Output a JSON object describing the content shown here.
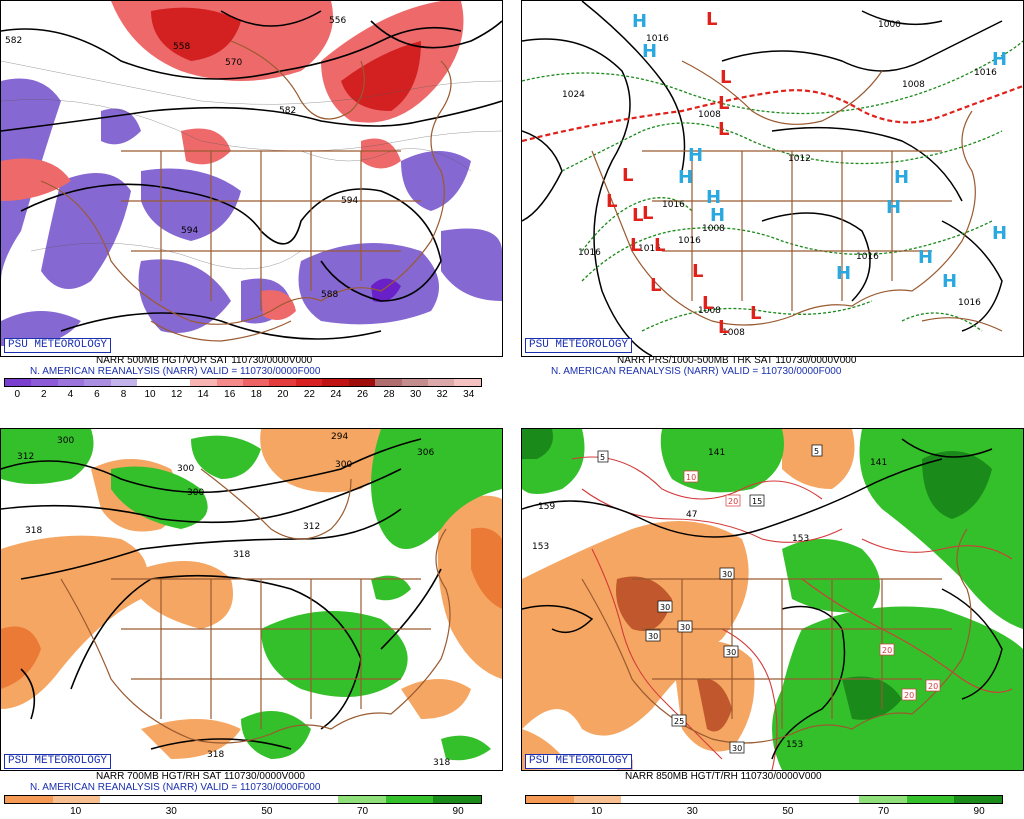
{
  "panels": {
    "tl": {
      "psu": "PSU METEOROLOGY",
      "caption1": "NARR 500MB HGT/VOR SAT 110730/0000V000",
      "caption2": "N. AMERICAN REANALYSIS (NARR) VALID = 110730/0000F000",
      "contour_labels": [
        "582",
        "558",
        "570",
        "556",
        "582",
        "594",
        "594",
        "588"
      ],
      "colorbar_ticks": [
        "0",
        "2",
        "4",
        "6",
        "8",
        "10",
        "12",
        "14",
        "16",
        "18",
        "20",
        "22",
        "24",
        "26",
        "28",
        "30",
        "32",
        "34"
      ],
      "colorbar_colors": [
        "#7b3fd0",
        "#8d5bd8",
        "#9b74dc",
        "#a98ee2",
        "#c2b4ea",
        "#ffffff",
        "#ffffff",
        "#f8b3b3",
        "#f48a8a",
        "#ee6363",
        "#e43c3c",
        "#d82222",
        "#c01414",
        "#a00d0d",
        "#b06d6d",
        "#c48d8d",
        "#dba9a9",
        "#f5c2c2"
      ]
    },
    "tr": {
      "psu": "PSU METEOROLOGY",
      "caption1": "NARR PRS/1000-500MB THK SAT 110730/0000V000",
      "caption2": "N. AMERICAN REANALYSIS (NARR) VALID = 110730/0000F000",
      "contour_labels": [
        "1000",
        "1016",
        "1024",
        "1008",
        "1016",
        "1008",
        "1012",
        "1016",
        "1016",
        "1016",
        "1016",
        "1016",
        "1008",
        "1008",
        "1016",
        "1008"
      ],
      "high_symbol": "H",
      "low_symbol": "L"
    },
    "bl": {
      "psu": "PSU METEOROLOGY",
      "caption1": "NARR 700MB HGT/RH SAT 110730/0000V000",
      "caption2": "N. AMERICAN REANALYSIS (NARR) VALID = 110730/0000F000",
      "contour_labels": [
        "300",
        "312",
        "300",
        "300",
        "294",
        "300",
        "306",
        "318",
        "312",
        "318",
        "318",
        "318"
      ],
      "colorbar_ticks": [
        "10",
        "30",
        "50",
        "70",
        "90"
      ],
      "colorbar_colors": [
        "#f49a55",
        "#f8c090",
        "#ffffff",
        "#ffffff",
        "#ffffff",
        "#ffffff",
        "#ffffff",
        "#8fe07a",
        "#34c02a",
        "#1a8a1a"
      ]
    },
    "br": {
      "psu": "PSU METEOROLOGY",
      "caption1": "NARR 850MB HGT/T/RH 110730/0000V000",
      "contour_labels": [
        "5",
        "141",
        "5",
        "141",
        "159",
        "10",
        "20",
        "15",
        "47",
        "153",
        "153",
        "30",
        "30",
        "30",
        "30",
        "25",
        "30",
        "20",
        "20",
        "20",
        "30",
        "153",
        "20"
      ],
      "colorbar_ticks": [
        "10",
        "30",
        "50",
        "70",
        "90"
      ],
      "colorbar_colors": [
        "#f49a55",
        "#f8c090",
        "#ffffff",
        "#ffffff",
        "#ffffff",
        "#ffffff",
        "#ffffff",
        "#8fe07a",
        "#34c02a",
        "#1a8a1a"
      ]
    }
  }
}
